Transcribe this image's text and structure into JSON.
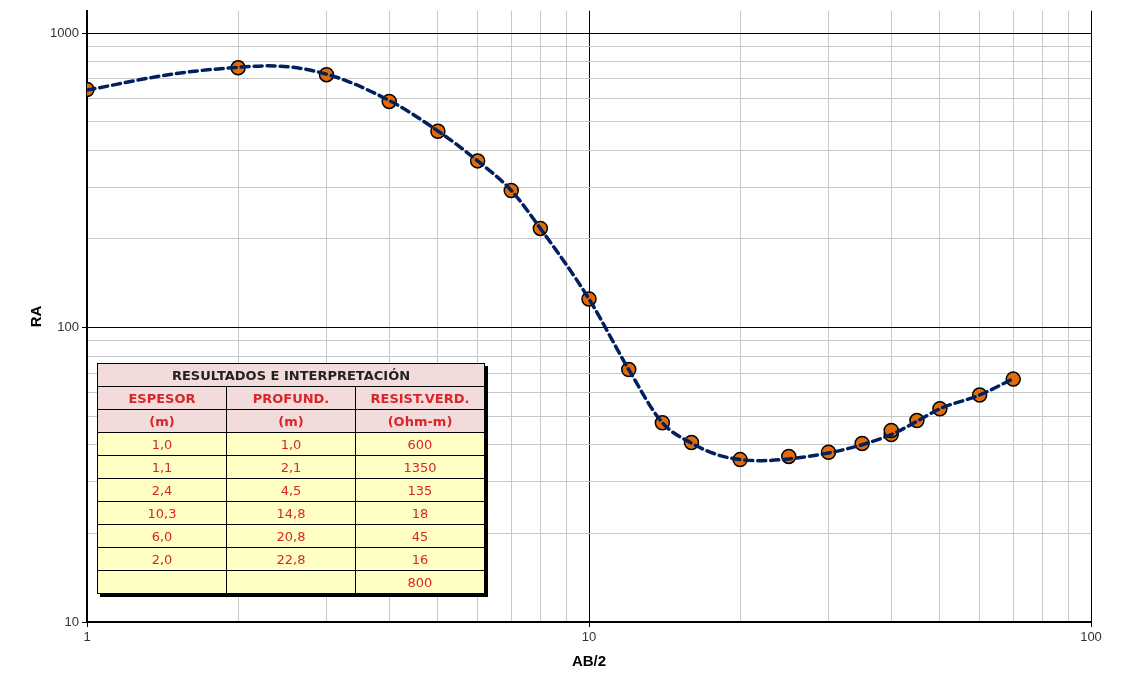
{
  "chart_data": [
    {
      "type": "scatter",
      "xlabel": "AB/2",
      "ylabel": "RA",
      "log": "xy",
      "grid": true,
      "legend": false,
      "xlim": [
        1,
        100
      ],
      "ylim": [
        10,
        1190
      ],
      "xticks": [
        1,
        {
          "value": 2,
          "label": null
        },
        {
          "value": 3,
          "label": null
        },
        {
          "value": 4,
          "label": null
        },
        {
          "value": 5,
          "label": null
        },
        {
          "value": 6,
          "label": null
        },
        {
          "value": 7,
          "label": null
        },
        {
          "value": 8,
          "label": null
        },
        {
          "value": 9,
          "label": null
        },
        10,
        {
          "value": 20,
          "label": null
        },
        {
          "value": 30,
          "label": null
        },
        {
          "value": 40,
          "label": null
        },
        {
          "value": 50,
          "label": null
        },
        {
          "value": 60,
          "label": null
        },
        {
          "value": 70,
          "label": null
        },
        {
          "value": 80,
          "label": null
        },
        {
          "value": 90,
          "label": null
        },
        100
      ],
      "yticks": [
        10,
        {
          "value": 20,
          "label": null
        },
        {
          "value": 30,
          "label": null
        },
        {
          "value": 40,
          "label": null
        },
        {
          "value": 50,
          "label": null
        },
        {
          "value": 60,
          "label": null
        },
        {
          "value": 70,
          "label": null
        },
        {
          "value": 80,
          "label": null
        },
        {
          "value": 90,
          "label": null
        },
        100,
        {
          "value": 200,
          "label": null
        },
        {
          "value": 300,
          "label": null
        },
        {
          "value": 400,
          "label": null
        },
        {
          "value": 500,
          "label": null
        },
        {
          "value": 600,
          "label": null
        },
        {
          "value": 700,
          "label": null
        },
        {
          "value": 800,
          "label": null
        },
        {
          "value": 900,
          "label": null
        },
        1000
      ],
      "series": [
        {
          "type": "line",
          "color": "#002060",
          "line_style": "dashed",
          "marker": "none",
          "x": [
            1,
            1.5,
            2,
            2.3,
            3,
            4,
            5,
            6,
            7,
            8,
            10,
            12,
            14,
            16,
            18,
            20,
            22,
            25,
            30,
            35,
            40,
            45,
            50,
            60,
            70
          ],
          "values": [
            640,
            728,
            765,
            774,
            725,
            590,
            465,
            368,
            292,
            217,
            125,
            72,
            47.5,
            40.5,
            37,
            35.6,
            35.3,
            35.8,
            37.5,
            40,
            43.3,
            48,
            53,
            59,
            67
          ]
        },
        {
          "type": "scatter",
          "color": "#e36c09",
          "marker": "circle",
          "x": [
            1,
            2,
            3,
            4,
            5,
            6,
            7,
            8,
            10,
            12,
            14,
            16,
            20,
            25,
            30,
            35,
            40,
            40,
            45,
            50,
            60,
            70
          ],
          "values": [
            643,
            762,
            722,
            586,
            464,
            368,
            292,
            217,
            125,
            72,
            47.5,
            40.7,
            35.6,
            36.5,
            37.7,
            40.4,
            43.3,
            44.7,
            48.3,
            53,
            59,
            66.8
          ]
        }
      ]
    },
    {
      "type": "other",
      "title": "RESULTADOS E INTERPRETACIÓN",
      "categories": [
        "ESPESOR",
        "PROFUND.",
        "RESIST.VERD."
      ],
      "cell_labels": [
        [
          "(m)",
          "(m)",
          "(Ohm-m)"
        ],
        [
          "1,0",
          "1,0",
          "600"
        ],
        [
          "1,1",
          "2,1",
          "1350"
        ],
        [
          "2,4",
          "4,5",
          "135"
        ],
        [
          "10,3",
          "14,8",
          "18"
        ],
        [
          "6,0",
          "20,8",
          "45"
        ],
        [
          "2,0",
          "22,8",
          "16"
        ],
        [
          null,
          null,
          "800"
        ]
      ]
    }
  ]
}
